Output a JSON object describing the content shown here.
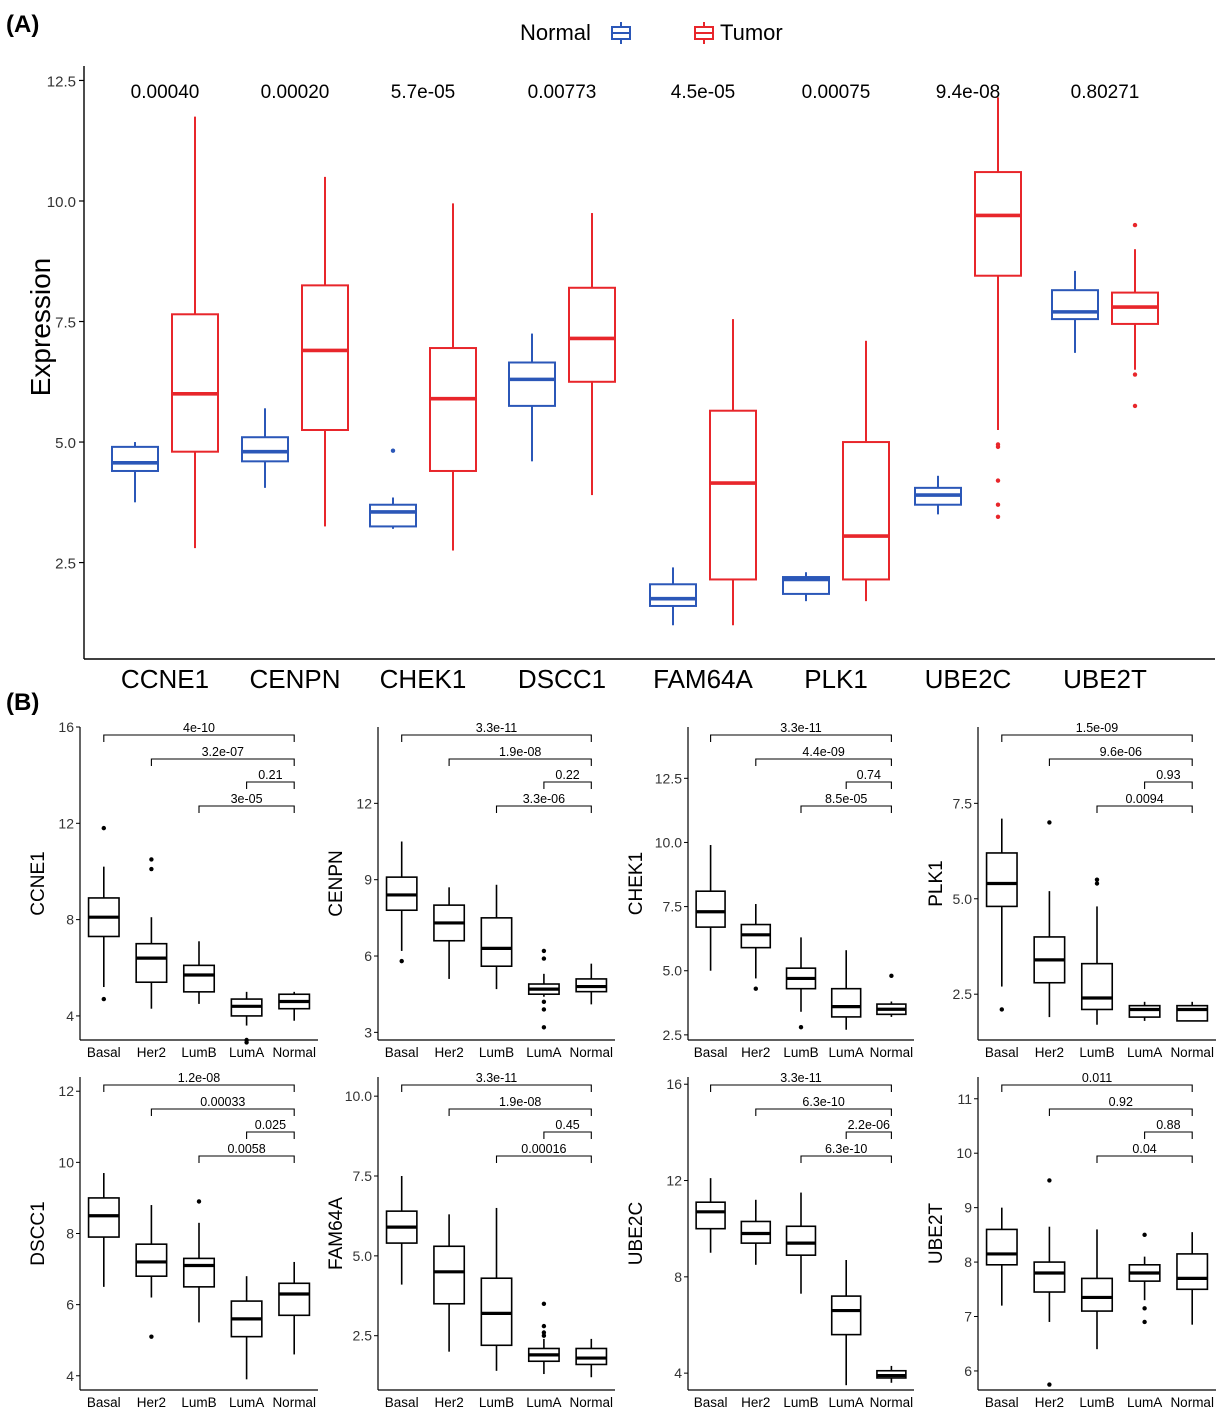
{
  "panel_a_label": "(A)",
  "panel_b_label": "(B)",
  "chart_data": [
    {
      "type": "box",
      "panel": "A",
      "ylabel": "Expression",
      "yticks": [
        2.5,
        5.0,
        7.5,
        10.0,
        12.5
      ],
      "ytick_labels": [
        "2.5",
        "5.0",
        "7.5",
        "10.0",
        "12.5"
      ],
      "ylim": [
        0.5,
        12.8
      ],
      "legend": {
        "position": "top",
        "entries": [
          {
            "label": "Normal",
            "color": "#2b57b8"
          },
          {
            "label": "Tumor",
            "color": "#e8262b"
          }
        ]
      },
      "categories": [
        "CCNE1",
        "CENPN",
        "CHEK1",
        "DSCC1",
        "FAM64A",
        "PLK1",
        "UBE2C",
        "UBE2T"
      ],
      "pvalues": [
        "0.00040",
        "0.00020",
        "5.7e-05",
        "0.00773",
        "4.5e-05",
        "0.00075",
        "9.4e-08",
        "0.80271"
      ],
      "series": [
        {
          "name": "Normal",
          "color": "#2b57b8",
          "boxes": [
            {
              "min": 3.75,
              "q1": 4.4,
              "median": 4.57,
              "q3": 4.9,
              "max": 5.0,
              "outliers": []
            },
            {
              "min": 4.05,
              "q1": 4.6,
              "median": 4.8,
              "q3": 5.1,
              "max": 5.7,
              "outliers": []
            },
            {
              "min": 3.2,
              "q1": 3.25,
              "median": 3.55,
              "q3": 3.7,
              "max": 3.85,
              "outliers": [
                4.82
              ]
            },
            {
              "min": 4.6,
              "q1": 5.75,
              "median": 6.3,
              "q3": 6.65,
              "max": 7.25,
              "outliers": []
            },
            {
              "min": 1.2,
              "q1": 1.6,
              "median": 1.75,
              "q3": 2.05,
              "max": 2.4,
              "outliers": []
            },
            {
              "min": 1.7,
              "q1": 1.85,
              "median": 2.15,
              "q3": 2.2,
              "max": 2.3,
              "outliers": []
            },
            {
              "min": 3.5,
              "q1": 3.7,
              "median": 3.9,
              "q3": 4.05,
              "max": 4.3,
              "outliers": []
            },
            {
              "min": 6.85,
              "q1": 7.55,
              "median": 7.7,
              "q3": 8.15,
              "max": 8.55,
              "outliers": []
            }
          ]
        },
        {
          "name": "Tumor",
          "color": "#e8262b",
          "boxes": [
            {
              "min": 2.8,
              "q1": 4.8,
              "median": 6.0,
              "q3": 7.65,
              "max": 11.75,
              "outliers": []
            },
            {
              "min": 3.25,
              "q1": 5.25,
              "median": 6.9,
              "q3": 8.25,
              "max": 10.5,
              "outliers": []
            },
            {
              "min": 2.75,
              "q1": 4.4,
              "median": 5.9,
              "q3": 6.95,
              "max": 9.95,
              "outliers": []
            },
            {
              "min": 3.9,
              "q1": 6.25,
              "median": 7.15,
              "q3": 8.2,
              "max": 9.75,
              "outliers": []
            },
            {
              "min": 1.2,
              "q1": 2.15,
              "median": 4.15,
              "q3": 5.65,
              "max": 7.55,
              "outliers": []
            },
            {
              "min": 1.7,
              "q1": 2.15,
              "median": 3.05,
              "q3": 5.0,
              "max": 7.1,
              "outliers": []
            },
            {
              "min": 5.25,
              "q1": 8.45,
              "median": 9.7,
              "q3": 10.6,
              "max": 12.15,
              "outliers": [
                4.95,
                4.9,
                4.2,
                3.7,
                3.45
              ]
            },
            {
              "min": 6.5,
              "q1": 7.45,
              "median": 7.8,
              "q3": 8.1,
              "max": 9.0,
              "outliers": [
                9.5,
                6.4,
                5.75
              ]
            }
          ]
        }
      ]
    },
    {
      "type": "box",
      "panel": "B",
      "ylabel": "CCNE1",
      "categories": [
        "Basal",
        "Her2",
        "LumB",
        "LumA",
        "Normal"
      ],
      "ylim": [
        3.0,
        16.0
      ],
      "yticks": [
        4,
        8,
        12,
        16
      ],
      "ytick_labels": [
        "4",
        "8",
        "12",
        "16"
      ],
      "boxes": [
        {
          "min": 5.2,
          "q1": 7.3,
          "median": 8.1,
          "q3": 8.9,
          "max": 10.2,
          "outliers": [
            11.8,
            4.7
          ]
        },
        {
          "min": 4.3,
          "q1": 5.4,
          "median": 6.4,
          "q3": 7.0,
          "max": 8.1,
          "outliers": [
            10.5,
            10.1
          ]
        },
        {
          "min": 4.5,
          "q1": 5.0,
          "median": 5.7,
          "q3": 6.1,
          "max": 7.1,
          "outliers": []
        },
        {
          "min": 3.6,
          "q1": 4.0,
          "median": 4.4,
          "q3": 4.7,
          "max": 5.0,
          "outliers": [
            3.0,
            2.9
          ]
        },
        {
          "min": 3.8,
          "q1": 4.3,
          "median": 4.6,
          "q3": 4.9,
          "max": 5.0,
          "outliers": []
        }
      ],
      "comparisons": [
        {
          "pvalue": "4e-10"
        },
        {
          "pvalue": "3.2e-07"
        },
        {
          "pvalue": "0.21"
        },
        {
          "pvalue": "3e-05"
        }
      ]
    },
    {
      "type": "box",
      "panel": "B",
      "ylabel": "CENPN",
      "categories": [
        "Basal",
        "Her2",
        "LumB",
        "LumA",
        "Normal"
      ],
      "ylim": [
        2.7,
        15.0
      ],
      "yticks": [
        3,
        6,
        9,
        12
      ],
      "ytick_labels": [
        "3",
        "6",
        "9",
        "12"
      ],
      "boxes": [
        {
          "min": 6.2,
          "q1": 7.8,
          "median": 8.4,
          "q3": 9.1,
          "max": 10.5,
          "outliers": [
            5.8
          ]
        },
        {
          "min": 5.1,
          "q1": 6.6,
          "median": 7.3,
          "q3": 8.0,
          "max": 8.7,
          "outliers": []
        },
        {
          "min": 4.7,
          "q1": 5.6,
          "median": 6.3,
          "q3": 7.5,
          "max": 8.8,
          "outliers": []
        },
        {
          "min": 4.4,
          "q1": 4.5,
          "median": 4.7,
          "q3": 4.9,
          "max": 5.3,
          "outliers": [
            6.2,
            5.9,
            4.2,
            3.9,
            3.2
          ]
        },
        {
          "min": 4.1,
          "q1": 4.6,
          "median": 4.8,
          "q3": 5.1,
          "max": 5.7,
          "outliers": []
        }
      ],
      "comparisons": [
        {
          "pvalue": "3.3e-11"
        },
        {
          "pvalue": "1.9e-08"
        },
        {
          "pvalue": "0.22"
        },
        {
          "pvalue": "3.3e-06"
        }
      ]
    },
    {
      "type": "box",
      "panel": "B",
      "ylabel": "CHEK1",
      "categories": [
        "Basal",
        "Her2",
        "LumB",
        "LumA",
        "Normal"
      ],
      "ylim": [
        2.3,
        14.5
      ],
      "yticks": [
        2.5,
        5.0,
        7.5,
        10.0,
        12.5
      ],
      "ytick_labels": [
        "2.5",
        "5.0",
        "7.5",
        "10.0",
        "12.5"
      ],
      "boxes": [
        {
          "min": 5.0,
          "q1": 6.7,
          "median": 7.3,
          "q3": 8.1,
          "max": 9.9,
          "outliers": []
        },
        {
          "min": 4.7,
          "q1": 5.9,
          "median": 6.4,
          "q3": 6.8,
          "max": 7.6,
          "outliers": [
            4.3
          ]
        },
        {
          "min": 3.4,
          "q1": 4.3,
          "median": 4.7,
          "q3": 5.1,
          "max": 6.3,
          "outliers": [
            2.8
          ]
        },
        {
          "min": 2.7,
          "q1": 3.2,
          "median": 3.6,
          "q3": 4.3,
          "max": 5.8,
          "outliers": []
        },
        {
          "min": 3.2,
          "q1": 3.3,
          "median": 3.5,
          "q3": 3.7,
          "max": 3.8,
          "outliers": [
            4.8
          ]
        }
      ],
      "comparisons": [
        {
          "pvalue": "3.3e-11"
        },
        {
          "pvalue": "4.4e-09"
        },
        {
          "pvalue": "0.74"
        },
        {
          "pvalue": "8.5e-05"
        }
      ]
    },
    {
      "type": "box",
      "panel": "B",
      "ylabel": "PLK1",
      "categories": [
        "Basal",
        "Her2",
        "LumB",
        "LumA",
        "Normal"
      ],
      "ylim": [
        1.3,
        9.5
      ],
      "yticks": [
        2.5,
        5.0,
        7.5
      ],
      "ytick_labels": [
        "2.5",
        "5.0",
        "7.5"
      ],
      "boxes": [
        {
          "min": 2.7,
          "q1": 4.8,
          "median": 5.4,
          "q3": 6.2,
          "max": 7.1,
          "outliers": [
            2.1
          ]
        },
        {
          "min": 1.9,
          "q1": 2.8,
          "median": 3.4,
          "q3": 4.0,
          "max": 5.2,
          "outliers": [
            7.0
          ]
        },
        {
          "min": 1.7,
          "q1": 2.1,
          "median": 2.4,
          "q3": 3.3,
          "max": 4.8,
          "outliers": [
            5.5,
            5.4
          ]
        },
        {
          "min": 1.8,
          "q1": 1.9,
          "median": 2.1,
          "q3": 2.2,
          "max": 2.3,
          "outliers": []
        },
        {
          "min": 1.8,
          "q1": 1.8,
          "median": 2.1,
          "q3": 2.2,
          "max": 2.3,
          "outliers": []
        }
      ],
      "comparisons": [
        {
          "pvalue": "1.5e-09"
        },
        {
          "pvalue": "9.6e-06"
        },
        {
          "pvalue": "0.93"
        },
        {
          "pvalue": "0.0094"
        }
      ]
    },
    {
      "type": "box",
      "panel": "B",
      "ylabel": "DSCC1",
      "categories": [
        "Basal",
        "Her2",
        "LumB",
        "LumA",
        "Normal"
      ],
      "ylim": [
        3.6,
        12.4
      ],
      "yticks": [
        4,
        6,
        8,
        10,
        12
      ],
      "ytick_labels": [
        "4",
        "6",
        "8",
        "10",
        "12"
      ],
      "boxes": [
        {
          "min": 6.5,
          "q1": 7.9,
          "median": 8.5,
          "q3": 9.0,
          "max": 9.7,
          "outliers": []
        },
        {
          "min": 6.2,
          "q1": 6.8,
          "median": 7.2,
          "q3": 7.7,
          "max": 8.8,
          "outliers": [
            5.1
          ]
        },
        {
          "min": 5.5,
          "q1": 6.5,
          "median": 7.1,
          "q3": 7.3,
          "max": 8.3,
          "outliers": [
            8.9
          ]
        },
        {
          "min": 3.9,
          "q1": 5.1,
          "median": 5.6,
          "q3": 6.1,
          "max": 6.8,
          "outliers": []
        },
        {
          "min": 4.6,
          "q1": 5.7,
          "median": 6.3,
          "q3": 6.6,
          "max": 7.2,
          "outliers": []
        }
      ],
      "comparisons": [
        {
          "pvalue": "1.2e-08"
        },
        {
          "pvalue": "0.00033"
        },
        {
          "pvalue": "0.025"
        },
        {
          "pvalue": "0.0058"
        }
      ]
    },
    {
      "type": "box",
      "panel": "B",
      "ylabel": "FAM64A",
      "categories": [
        "Basal",
        "Her2",
        "LumB",
        "LumA",
        "Normal"
      ],
      "ylim": [
        0.8,
        10.6
      ],
      "yticks": [
        2.5,
        5.0,
        7.5,
        10.0
      ],
      "ytick_labels": [
        "2.5",
        "5.0",
        "7.5",
        "10.0"
      ],
      "boxes": [
        {
          "min": 4.1,
          "q1": 5.4,
          "median": 5.9,
          "q3": 6.4,
          "max": 7.5,
          "outliers": []
        },
        {
          "min": 2.0,
          "q1": 3.5,
          "median": 4.5,
          "q3": 5.3,
          "max": 6.3,
          "outliers": []
        },
        {
          "min": 1.4,
          "q1": 2.2,
          "median": 3.2,
          "q3": 4.3,
          "max": 6.5,
          "outliers": []
        },
        {
          "min": 1.3,
          "q1": 1.7,
          "median": 1.9,
          "q3": 2.1,
          "max": 2.4,
          "outliers": [
            3.5,
            2.8,
            2.6,
            2.5
          ]
        },
        {
          "min": 1.2,
          "q1": 1.6,
          "median": 1.8,
          "q3": 2.1,
          "max": 2.4,
          "outliers": []
        }
      ],
      "comparisons": [
        {
          "pvalue": "3.3e-11"
        },
        {
          "pvalue": "1.9e-08"
        },
        {
          "pvalue": "0.45"
        },
        {
          "pvalue": "0.00016"
        }
      ]
    },
    {
      "type": "box",
      "panel": "B",
      "ylabel": "UBE2C",
      "categories": [
        "Basal",
        "Her2",
        "LumB",
        "LumA",
        "Normal"
      ],
      "ylim": [
        3.3,
        16.3
      ],
      "yticks": [
        4,
        8,
        12,
        16
      ],
      "ytick_labels": [
        "4",
        "8",
        "12",
        "16"
      ],
      "boxes": [
        {
          "min": 9.0,
          "q1": 10.0,
          "median": 10.7,
          "q3": 11.1,
          "max": 12.1,
          "outliers": []
        },
        {
          "min": 8.5,
          "q1": 9.4,
          "median": 9.8,
          "q3": 10.3,
          "max": 11.2,
          "outliers": []
        },
        {
          "min": 7.3,
          "q1": 8.9,
          "median": 9.4,
          "q3": 10.1,
          "max": 11.5,
          "outliers": []
        },
        {
          "min": 3.5,
          "q1": 5.6,
          "median": 6.6,
          "q3": 7.2,
          "max": 8.7,
          "outliers": []
        },
        {
          "min": 3.6,
          "q1": 3.8,
          "median": 3.9,
          "q3": 4.1,
          "max": 4.3,
          "outliers": []
        }
      ],
      "comparisons": [
        {
          "pvalue": "3.3e-11"
        },
        {
          "pvalue": "6.3e-10"
        },
        {
          "pvalue": "2.2e-06"
        },
        {
          "pvalue": "6.3e-10"
        }
      ]
    },
    {
      "type": "box",
      "panel": "B",
      "ylabel": "UBE2T",
      "categories": [
        "Basal",
        "Her2",
        "LumB",
        "LumA",
        "Normal"
      ],
      "ylim": [
        5.65,
        11.4
      ],
      "yticks": [
        6,
        7,
        8,
        9,
        10,
        11
      ],
      "ytick_labels": [
        "6",
        "7",
        "8",
        "9",
        "10",
        "11"
      ],
      "boxes": [
        {
          "min": 7.2,
          "q1": 7.95,
          "median": 8.15,
          "q3": 8.6,
          "max": 9.0,
          "outliers": []
        },
        {
          "min": 6.9,
          "q1": 7.45,
          "median": 7.8,
          "q3": 8.0,
          "max": 8.65,
          "outliers": [
            9.5,
            5.75
          ]
        },
        {
          "min": 6.4,
          "q1": 7.1,
          "median": 7.35,
          "q3": 7.7,
          "max": 8.6,
          "outliers": []
        },
        {
          "min": 7.3,
          "q1": 7.65,
          "median": 7.8,
          "q3": 7.95,
          "max": 8.1,
          "outliers": [
            8.5,
            7.15,
            6.9
          ]
        },
        {
          "min": 6.85,
          "q1": 7.5,
          "median": 7.7,
          "q3": 8.15,
          "max": 8.55,
          "outliers": []
        }
      ],
      "comparisons": [
        {
          "pvalue": "0.011"
        },
        {
          "pvalue": "0.92"
        },
        {
          "pvalue": "0.88"
        },
        {
          "pvalue": "0.04"
        }
      ]
    }
  ]
}
